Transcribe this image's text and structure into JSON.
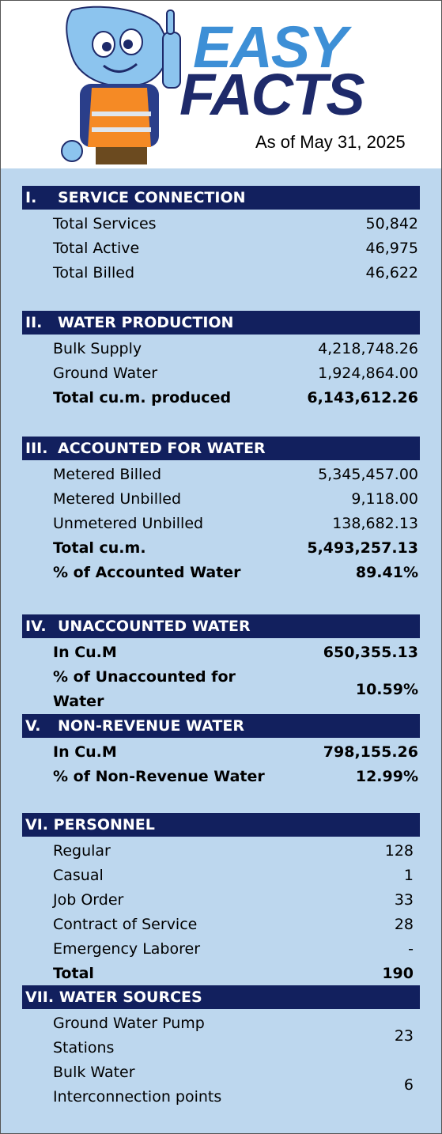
{
  "header": {
    "logo_line1": "EASY",
    "logo_line2": "FACTS",
    "date": "As of May 31, 2025"
  },
  "sections": [
    {
      "number": "I.",
      "title": "SERVICE CONNECTION",
      "rows": [
        {
          "label": "Total Services",
          "value": "50,842",
          "bold": false
        },
        {
          "label": "Total Active",
          "value": "46,975",
          "bold": false
        },
        {
          "label": "Total Billed",
          "value": "46,622",
          "bold": false
        }
      ]
    },
    {
      "number": "II.",
      "title": "WATER PRODUCTION",
      "rows": [
        {
          "label": "Bulk Supply",
          "value": "4,218,748.26",
          "bold": false
        },
        {
          "label": "Ground Water",
          "value": "1,924,864.00",
          "bold": false
        },
        {
          "label": "Total cu.m. produced",
          "value": "6,143,612.26",
          "bold": true
        }
      ]
    },
    {
      "number": "III.",
      "title": "ACCOUNTED FOR WATER",
      "rows": [
        {
          "label": "Metered Billed",
          "value": "5,345,457.00",
          "bold": false
        },
        {
          "label": "Metered Unbilled",
          "value": "9,118.00",
          "bold": false
        },
        {
          "label": "Unmetered Unbilled",
          "value": "138,682.13",
          "bold": false
        },
        {
          "label": "Total cu.m.",
          "value": "5,493,257.13",
          "bold": true
        },
        {
          "label": "% of Accounted Water",
          "value": "89.41%",
          "bold": true
        }
      ]
    },
    {
      "number": "IV.",
      "title": "UNACCOUNTED WATER",
      "rows": [
        {
          "label": "In Cu.M",
          "value": "650,355.13",
          "bold": true
        },
        {
          "label": [
            "% of Unaccounted for",
            "Water"
          ],
          "value": "10.59%",
          "bold": true
        }
      ]
    },
    {
      "number": "V.",
      "title": "NON-REVENUE WATER",
      "rows": [
        {
          "label": "In Cu.M",
          "value": "798,155.26",
          "bold": true
        },
        {
          "label": "% of Non-Revenue Water",
          "value": "12.99%",
          "bold": true
        }
      ]
    },
    {
      "number": "VI.",
      "title": "PERSONNEL",
      "rows": [
        {
          "label": "Regular",
          "value": "128",
          "bold": false
        },
        {
          "label": "Casual",
          "value": "1",
          "bold": false
        },
        {
          "label": "Job Order",
          "value": "33",
          "bold": false
        },
        {
          "label": "Contract of Service",
          "value": "28",
          "bold": false
        },
        {
          "label": "Emergency Laborer",
          "value": "-",
          "bold": false
        },
        {
          "label": "Total",
          "value": "190",
          "bold": true
        }
      ]
    },
    {
      "number": "VII.",
      "title": "WATER SOURCES",
      "rows": [
        {
          "label": [
            "Ground Water Pump",
            "Stations"
          ],
          "value": "23",
          "bold": false
        },
        {
          "label": [
            "Bulk Water",
            "Interconnection points"
          ],
          "value": "6",
          "bold": false
        }
      ]
    }
  ]
}
